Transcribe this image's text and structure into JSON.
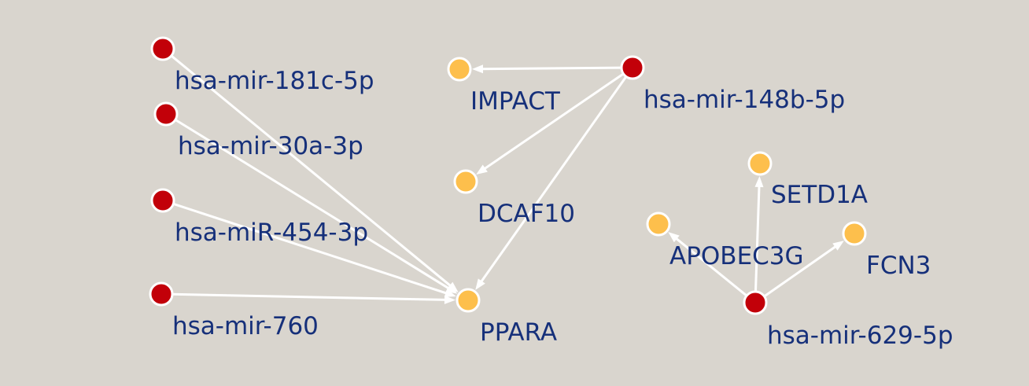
{
  "network": {
    "colors": {
      "background": "#d9d5ce",
      "mirna": "#c20009",
      "gene": "#fdbf4c",
      "edge": "#ffffff",
      "node_outline": "#ffffff",
      "label": "#16307a"
    },
    "nodes": [
      {
        "id": "mir-181c",
        "label": "hsa-mir-181c-5p",
        "kind": "mirna"
      },
      {
        "id": "mir-30a",
        "label": "hsa-mir-30a-3p",
        "kind": "mirna"
      },
      {
        "id": "mir-454",
        "label": "hsa-miR-454-3p",
        "kind": "mirna"
      },
      {
        "id": "mir-760",
        "label": "hsa-mir-760",
        "kind": "mirna"
      },
      {
        "id": "ppara",
        "label": "PPARA",
        "kind": "gene"
      },
      {
        "id": "impact",
        "label": "IMPACT",
        "kind": "gene"
      },
      {
        "id": "dcaf10",
        "label": "DCAF10",
        "kind": "gene"
      },
      {
        "id": "mir-148b",
        "label": "hsa-mir-148b-5p",
        "kind": "mirna"
      },
      {
        "id": "setd1a",
        "label": "SETD1A",
        "kind": "gene"
      },
      {
        "id": "apobec3g",
        "label": "APOBEC3G",
        "kind": "gene"
      },
      {
        "id": "fcn3",
        "label": "FCN3",
        "kind": "gene"
      },
      {
        "id": "mir-629",
        "label": "hsa-mir-629-5p",
        "kind": "mirna"
      }
    ],
    "edges": [
      {
        "source": "mir-181c",
        "target": "ppara"
      },
      {
        "source": "mir-30a",
        "target": "ppara"
      },
      {
        "source": "mir-454",
        "target": "ppara"
      },
      {
        "source": "mir-760",
        "target": "ppara"
      },
      {
        "source": "mir-148b",
        "target": "impact"
      },
      {
        "source": "mir-148b",
        "target": "dcaf10"
      },
      {
        "source": "mir-148b",
        "target": "ppara"
      },
      {
        "source": "mir-629",
        "target": "setd1a"
      },
      {
        "source": "mir-629",
        "target": "apobec3g"
      },
      {
        "source": "mir-629",
        "target": "fcn3"
      }
    ]
  }
}
